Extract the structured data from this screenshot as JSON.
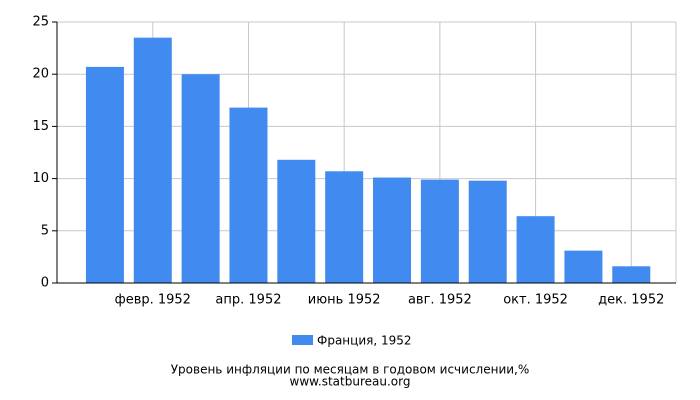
{
  "chart_data": {
    "type": "bar",
    "title": "Уровень инфляции по месяцам в годовом исчислении,%",
    "source": "www.statbureau.org",
    "categories": [
      null,
      "февр. 1952",
      null,
      "апр. 1952",
      null,
      "июнь 1952",
      null,
      "авг. 1952",
      null,
      "окт. 1952",
      null,
      "дек. 1952"
    ],
    "series": [
      {
        "name": "Франция, 1952",
        "color": "#418af0",
        "values": [
          20.7,
          23.5,
          20.0,
          16.8,
          11.8,
          10.7,
          10.1,
          9.9,
          9.8,
          6.4,
          3.1,
          1.6
        ]
      }
    ],
    "ylim": [
      0,
      25
    ],
    "yticks": [
      0,
      5,
      10,
      15,
      20,
      25
    ],
    "grid": true
  }
}
